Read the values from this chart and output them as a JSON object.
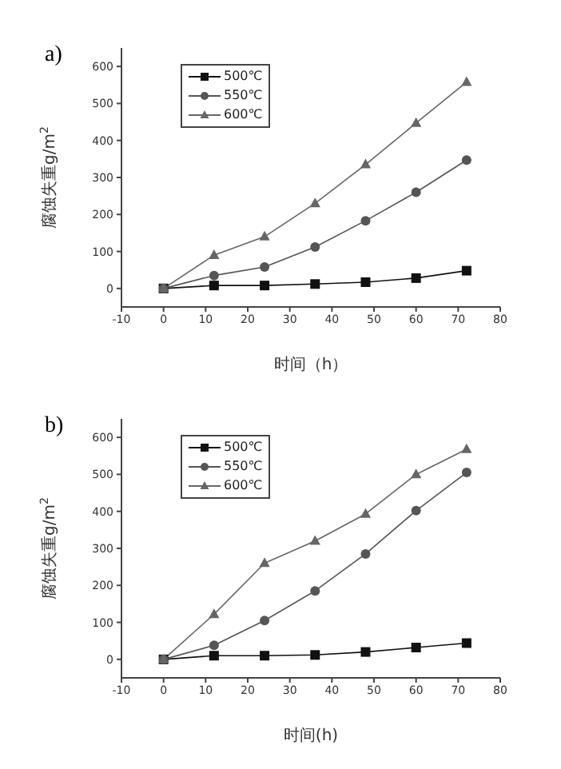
{
  "chart_data": [
    {
      "type": "line",
      "title": "a)",
      "xlabel": "时间（h）",
      "ylabel": "腐蚀失重g/m$^{2}$",
      "x": [
        0,
        12,
        24,
        36,
        48,
        60,
        72
      ],
      "xlim": [
        -10,
        80
      ],
      "xticks": [
        -10,
        0,
        10,
        20,
        30,
        40,
        50,
        60,
        70,
        80
      ],
      "ylim": [
        -50,
        650
      ],
      "yticks": [
        0,
        100,
        200,
        300,
        400,
        500,
        600
      ],
      "legend": "top left",
      "grid": false,
      "series": [
        {
          "name": "500℃",
          "color": "#111111",
          "marker": "square",
          "values": [
            0,
            8,
            8,
            12,
            17,
            28,
            48
          ]
        },
        {
          "name": "550℃",
          "color": "#555555",
          "marker": "circle",
          "values": [
            0,
            35,
            58,
            112,
            183,
            260,
            347
          ]
        },
        {
          "name": "600℃",
          "color": "#666666",
          "marker": "triangle",
          "values": [
            0,
            90,
            140,
            230,
            335,
            447,
            558
          ]
        }
      ]
    },
    {
      "type": "line",
      "title": "b)",
      "xlabel": "时间(h)",
      "ylabel": "腐蚀失重g/m$^{2}$",
      "x": [
        0,
        12,
        24,
        36,
        48,
        60,
        72
      ],
      "xlim": [
        -10,
        80
      ],
      "xticks": [
        -10,
        0,
        10,
        20,
        30,
        40,
        50,
        60,
        70,
        80
      ],
      "ylim": [
        -50,
        650
      ],
      "yticks": [
        0,
        100,
        200,
        300,
        400,
        500,
        600
      ],
      "legend": "top left",
      "grid": false,
      "series": [
        {
          "name": "500℃",
          "color": "#111111",
          "marker": "square",
          "values": [
            0,
            10,
            10,
            12,
            20,
            32,
            44
          ]
        },
        {
          "name": "550℃",
          "color": "#555555",
          "marker": "circle",
          "values": [
            0,
            38,
            105,
            185,
            285,
            402,
            505
          ]
        },
        {
          "name": "600℃",
          "color": "#666666",
          "marker": "triangle",
          "values": [
            0,
            122,
            260,
            320,
            393,
            500,
            568
          ]
        }
      ]
    }
  ]
}
